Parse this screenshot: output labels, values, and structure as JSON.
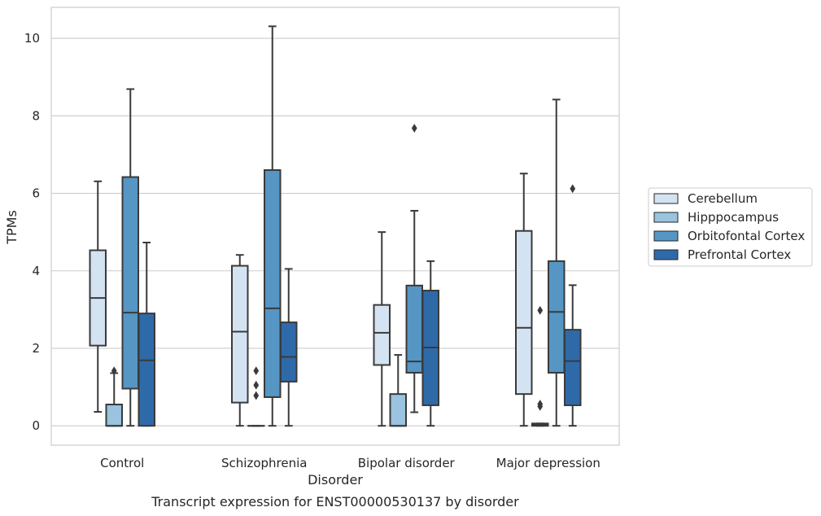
{
  "caption": "Transcript expression for ENST00000530137 by disorder",
  "chart_data": {
    "type": "box",
    "title": "",
    "xlabel": "Disorder",
    "ylabel": "TPMs",
    "ylim": [
      -0.5,
      10.8
    ],
    "yticks": [
      0,
      2,
      4,
      6,
      8,
      10
    ],
    "grid": true,
    "legend_position": "right",
    "categories": [
      "Control",
      "Schizophrenia",
      "Bipolar disorder",
      "Major depression"
    ],
    "series": [
      {
        "name": "Cerebellum",
        "color": "#d4e3f1",
        "boxes": [
          {
            "whislo": 0.36,
            "q1": 2.07,
            "med": 3.3,
            "q3": 4.53,
            "whishi": 6.31,
            "fliers": []
          },
          {
            "whislo": 0.0,
            "q1": 0.6,
            "med": 2.43,
            "q3": 4.13,
            "whishi": 4.41,
            "fliers": []
          },
          {
            "whislo": 0.0,
            "q1": 1.57,
            "med": 2.4,
            "q3": 3.12,
            "whishi": 5.0,
            "fliers": []
          },
          {
            "whislo": 0.0,
            "q1": 0.82,
            "med": 2.53,
            "q3": 5.03,
            "whishi": 6.51,
            "fliers": []
          }
        ]
      },
      {
        "name": "Hipppocampus",
        "color": "#99c3de",
        "boxes": [
          {
            "whislo": 0.0,
            "q1": 0.0,
            "med": 0.0,
            "q3": 0.55,
            "whishi": 1.36,
            "fliers": [
              1.42
            ]
          },
          {
            "whislo": 0.0,
            "q1": 0.0,
            "med": 0.0,
            "q3": 0.0,
            "whishi": 0.0,
            "fliers": [
              1.42,
              1.05,
              0.78
            ]
          },
          {
            "whislo": 0.0,
            "q1": 0.0,
            "med": 0.0,
            "q3": 0.82,
            "whishi": 1.83,
            "fliers": []
          },
          {
            "whislo": 0.0,
            "q1": 0.0,
            "med": 0.03,
            "q3": 0.06,
            "whishi": 0.06,
            "fliers": [
              2.98,
              0.56,
              0.5
            ]
          }
        ]
      },
      {
        "name": "Orbitofontal Cortex",
        "color": "#5596c4",
        "boxes": [
          {
            "whislo": 0.0,
            "q1": 0.96,
            "med": 2.92,
            "q3": 6.42,
            "whishi": 8.69,
            "fliers": []
          },
          {
            "whislo": 0.0,
            "q1": 0.74,
            "med": 3.03,
            "q3": 6.6,
            "whishi": 10.31,
            "fliers": []
          },
          {
            "whislo": 0.35,
            "q1": 1.37,
            "med": 1.66,
            "q3": 3.62,
            "whishi": 5.55,
            "fliers": [
              7.68
            ]
          },
          {
            "whislo": 0.0,
            "q1": 1.37,
            "med": 2.94,
            "q3": 4.25,
            "whishi": 8.42,
            "fliers": []
          }
        ]
      },
      {
        "name": "Prefrontal Cortex",
        "color": "#2f6aa8",
        "boxes": [
          {
            "whislo": 0.0,
            "q1": 0.0,
            "med": 1.69,
            "q3": 2.9,
            "whishi": 4.73,
            "fliers": []
          },
          {
            "whislo": 0.0,
            "q1": 1.14,
            "med": 1.78,
            "q3": 2.67,
            "whishi": 4.05,
            "fliers": []
          },
          {
            "whislo": 0.0,
            "q1": 0.53,
            "med": 2.02,
            "q3": 3.49,
            "whishi": 4.25,
            "fliers": []
          },
          {
            "whislo": 0.0,
            "q1": 0.53,
            "med": 1.67,
            "q3": 2.48,
            "whishi": 3.63,
            "fliers": [
              6.12
            ]
          }
        ]
      }
    ]
  }
}
